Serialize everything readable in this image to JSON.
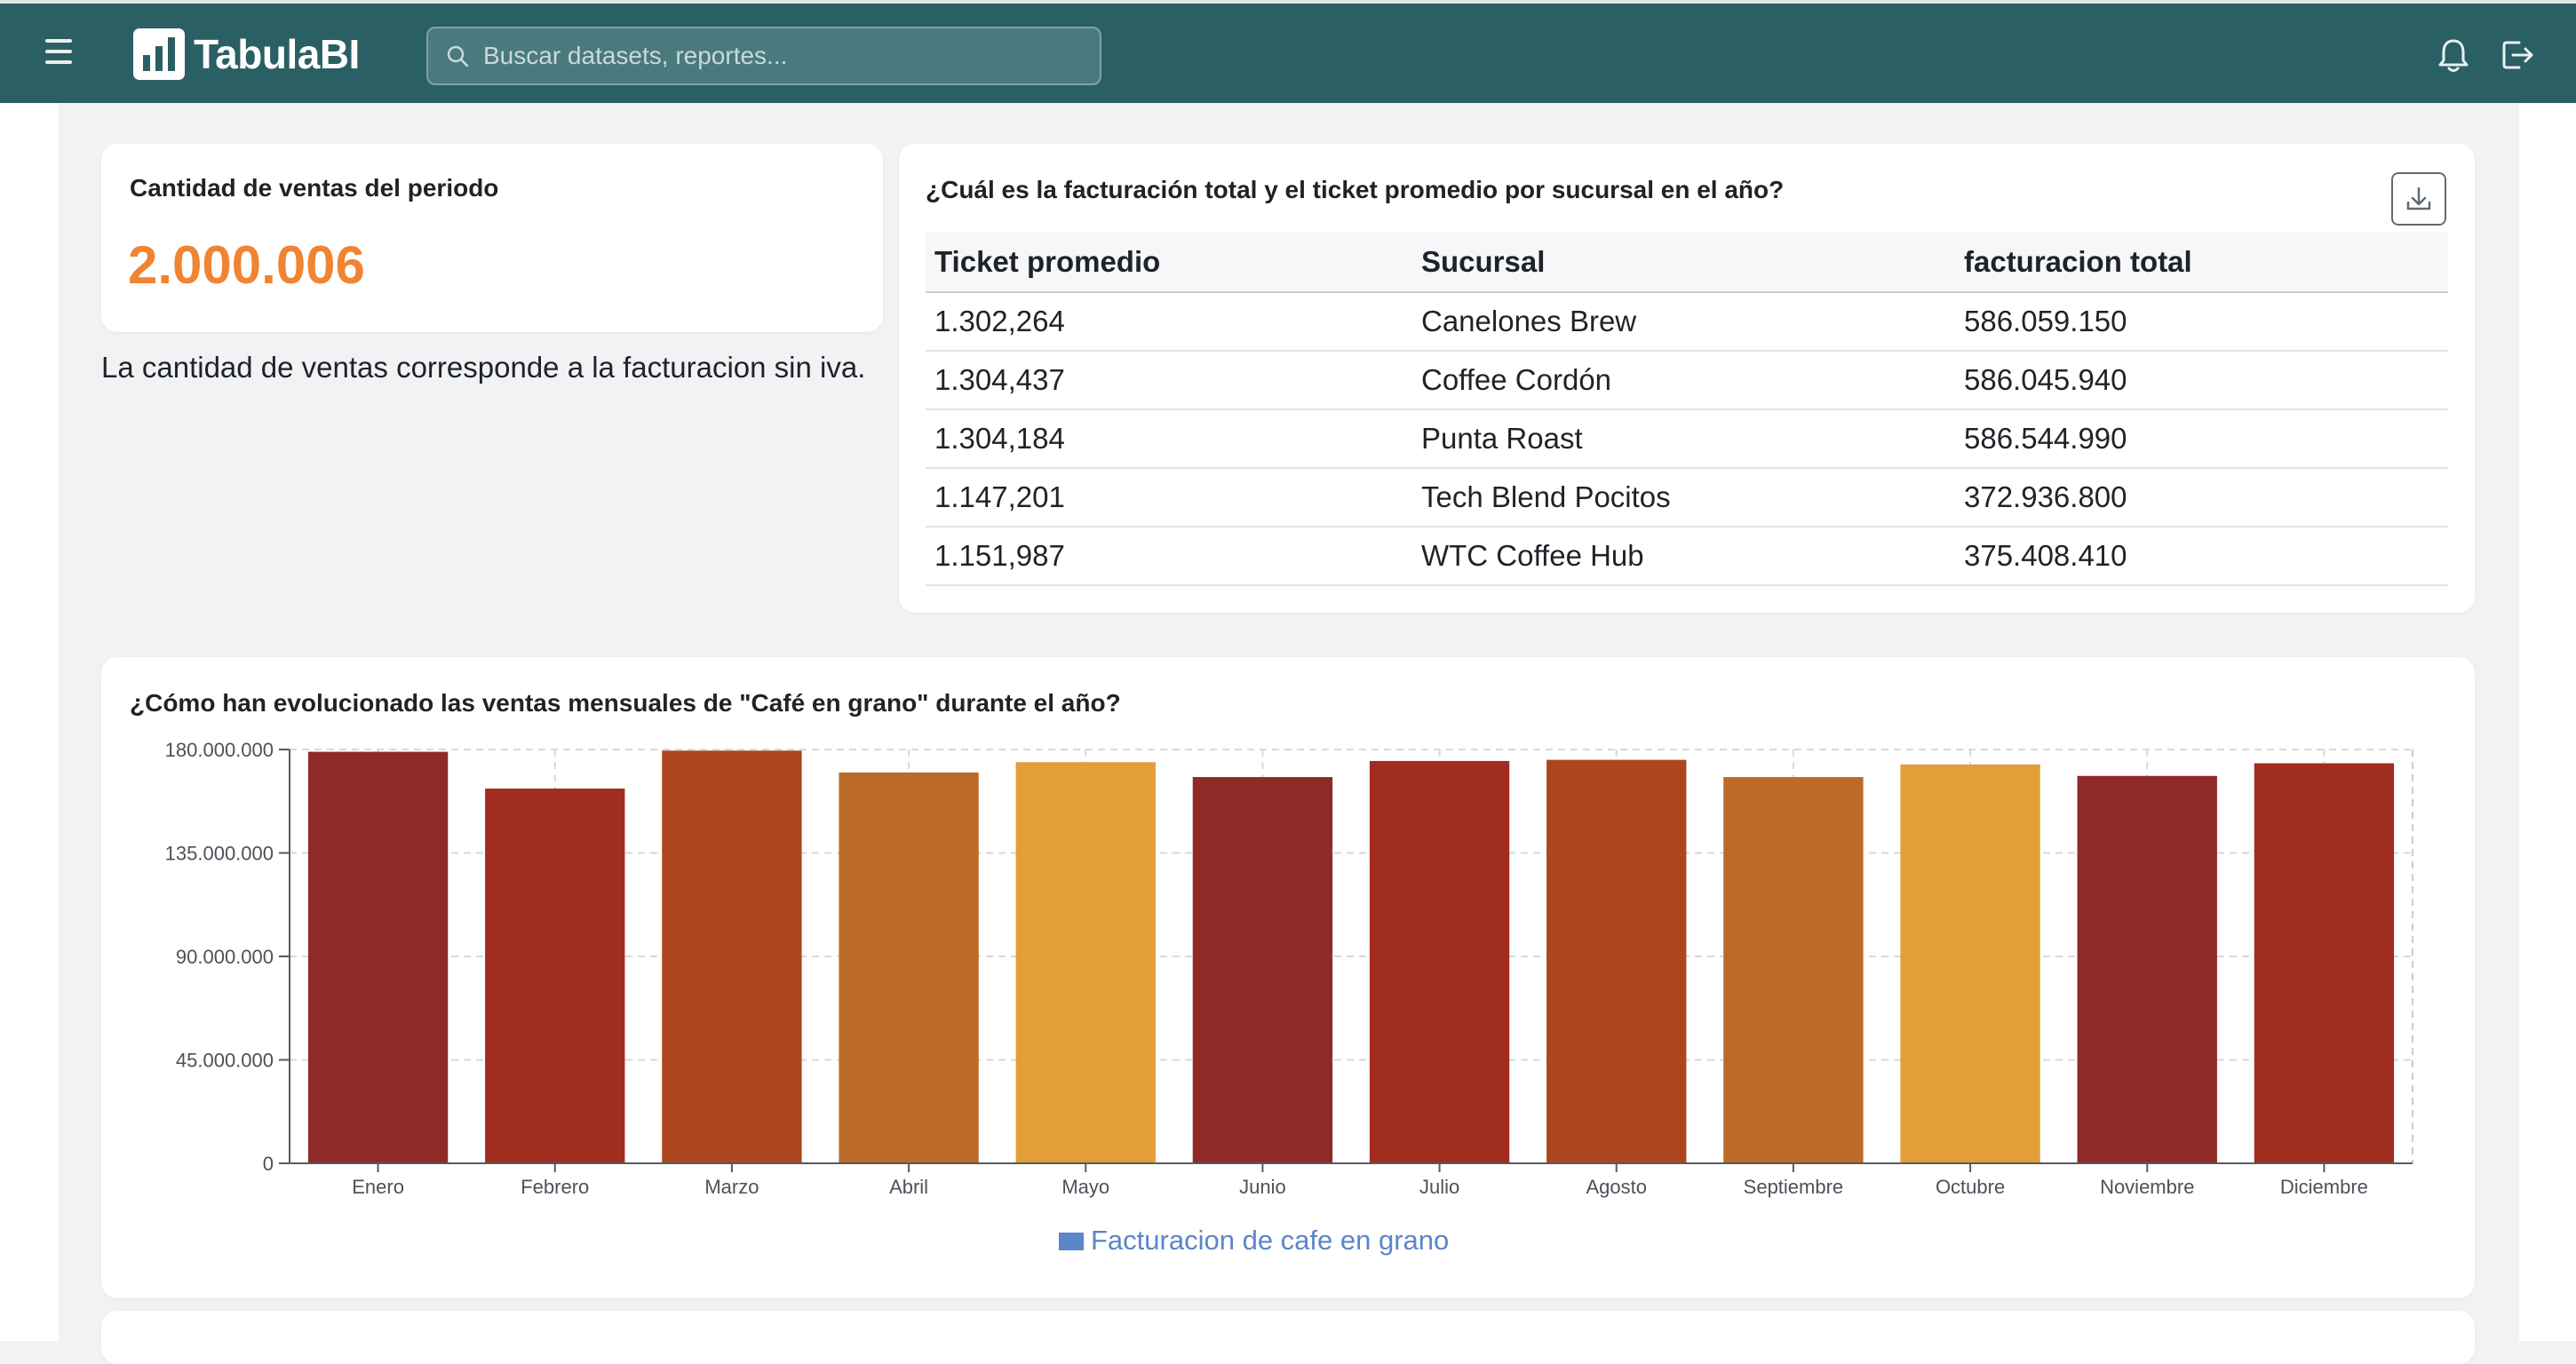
{
  "app": {
    "name": "TabulaBI",
    "search_placeholder": "Buscar datasets, reportes...",
    "icons": {
      "menu": "menu-icon",
      "search": "search-icon",
      "notifications": "bell-icon",
      "logout": "logout-icon",
      "download": "download-icon",
      "logo": "bar-chart-logo-icon"
    }
  },
  "colors": {
    "header": "#2a5f64",
    "kpi_value": "#ef8433",
    "legend": "#5b86c7"
  },
  "kpi": {
    "title": "Cantidad de ventas del periodo",
    "value": "2.000.006",
    "note": "La cantidad de ventas corresponde a la facturacion sin iva."
  },
  "branch_table": {
    "title": "¿Cuál es la facturación total y el ticket promedio por sucursal en el año?",
    "columns": [
      "Ticket promedio",
      "Sucursal",
      "facturacion total"
    ],
    "rows": [
      [
        "1.302,264",
        "Canelones Brew",
        "586.059.150"
      ],
      [
        "1.304,437",
        "Coffee Cordón",
        "586.045.940"
      ],
      [
        "1.304,184",
        "Punta Roast",
        "586.544.990"
      ],
      [
        "1.147,201",
        "Tech Blend Pocitos",
        "372.936.800"
      ],
      [
        "1.151,987",
        "WTC Coffee Hub",
        "375.408.410"
      ]
    ]
  },
  "chart_data": {
    "type": "bar",
    "title": "¿Cómo han evolucionado las ventas mensuales de \"Café en grano\" durante el año?",
    "xlabel": "",
    "ylabel": "",
    "categories": [
      "Enero",
      "Febrero",
      "Marzo",
      "Abril",
      "Mayo",
      "Junio",
      "Julio",
      "Agosto",
      "Septiembre",
      "Octubre",
      "Noviembre",
      "Diciembre"
    ],
    "series": [
      {
        "name": "Facturacion de cafe en grano",
        "values": [
          179000000,
          163000000,
          179500000,
          170000000,
          174500000,
          168000000,
          175000000,
          175500000,
          168000000,
          173500000,
          168500000,
          174000000
        ]
      }
    ],
    "bar_colors": [
      "#8f2a28",
      "#a12d21",
      "#ad461f",
      "#bc6a27",
      "#e19e39",
      "#8f2a28",
      "#a12d21",
      "#ad461f",
      "#bc6a27",
      "#e19e39",
      "#8f2a28",
      "#a12d21"
    ],
    "ylim": [
      0,
      180000000
    ],
    "yticks": [
      0,
      45000000,
      90000000,
      135000000,
      180000000
    ],
    "ytick_labels": [
      "0",
      "45.000.000",
      "90.000.000",
      "135.000.000",
      "180.000.000"
    ],
    "grid": true,
    "legend": "bottom-center"
  }
}
